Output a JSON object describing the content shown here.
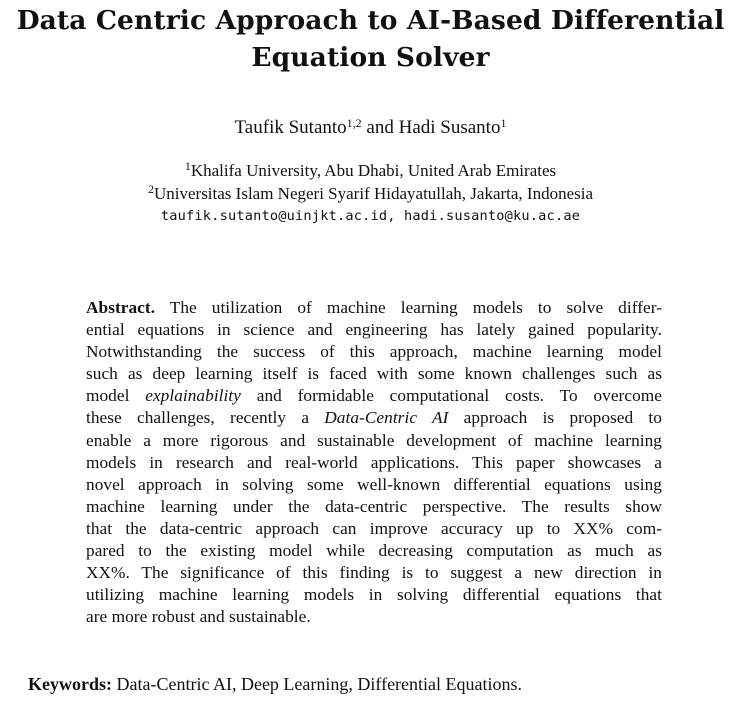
{
  "paper": {
    "title_line1": "Data Centric Approach to AI-Based Differential",
    "title_line2": "Equation Solver",
    "authors": {
      "author1_name": "Taufik Sutanto",
      "author1_sup": "1,2",
      "connector": " and ",
      "author2_name": "Hadi Susanto",
      "author2_sup": "1"
    },
    "affiliations": [
      {
        "sup": "1",
        "text": "Khalifa University, Abu Dhabi, United Arab Emirates"
      },
      {
        "sup": "2",
        "text": "Universitas Islam Negeri Syarif Hidayatullah, Jakarta, Indonesia"
      }
    ],
    "emails": "taufik.sutanto@uinjkt.ac.id, hadi.susanto@ku.ac.ae",
    "abstract": {
      "heading": "Abstract.",
      "line1_rest": " The utilization of machine learning models to solve differ-",
      "line2": "ential equations in science and engineering has lately gained popularity.",
      "line3": "Notwithstanding the success of this approach, machine learning model",
      "line4": "such as deep learning itself is faced with some known challenges such as",
      "line5_pre": "model ",
      "line5_italic": "explainability",
      "line5_post": " and formidable computational costs. To overcome",
      "line6_pre": "these challenges, recently a ",
      "line6_italic": "Data-Centric AI",
      "line6_post": " approach is proposed to",
      "line7": "enable a more rigorous and sustainable development of machine learning",
      "line8": "models in research and real-world applications. This paper showcases a",
      "line9": "novel approach in solving some well-known differential equations using",
      "line10": "machine learning under the data-centric perspective. The results show",
      "line11": "that the data-centric approach can improve accuracy up to XX% com-",
      "line12": "pared to the existing model while decreasing computation as much as",
      "line13": "XX%. The significance of this finding is to suggest a new direction in",
      "line14": "utilizing machine learning models in solving differential equations that",
      "line15": "are more robust and sustainable."
    },
    "keywords": {
      "label": "Keywords:",
      "text": " Data-Centric AI, Deep Learning, Differential Equations."
    }
  }
}
